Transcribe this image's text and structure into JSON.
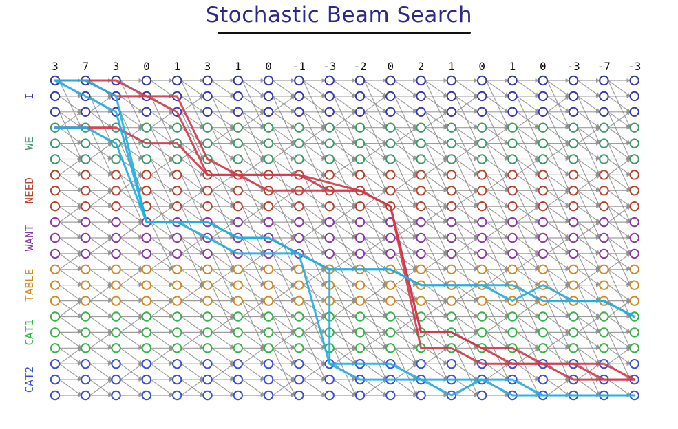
{
  "title": "Stochastic Beam Search",
  "column_scores": [
    "3",
    "7",
    "3",
    "0",
    "1",
    "3",
    "1",
    "0",
    "-1",
    "-3",
    "-2",
    "0",
    "2",
    "1",
    "0",
    "1",
    "0",
    "-3",
    "-7",
    "-3"
  ],
  "row_groups": [
    {
      "label": "I",
      "color": "#3a3aa8"
    },
    {
      "label": "WE",
      "color": "#3d9a6a"
    },
    {
      "label": "NEED",
      "color": "#b5452f"
    },
    {
      "label": "WANT",
      "color": "#8a3aa8"
    },
    {
      "label": "TABLE",
      "color": "#d08a25"
    },
    {
      "label": "CAT1",
      "color": "#36b24a"
    },
    {
      "label": "CAT2",
      "color": "#3b4fd6"
    }
  ],
  "colors": {
    "edge": "#8c8c8c",
    "red_path": "#d4384a",
    "blue_path": "#22aee0"
  }
}
